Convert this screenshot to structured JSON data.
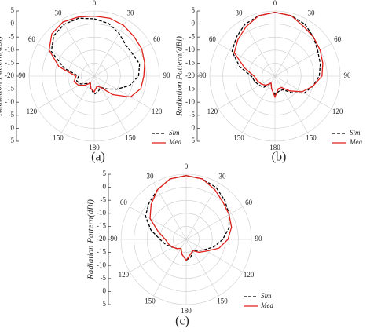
{
  "chart_data": [
    {
      "type": "polar",
      "ylabel": "Radiation Pattern(dBi)",
      "panel_label": "(a)",
      "x": [
        0,
        15,
        30,
        45,
        60,
        75,
        90,
        105,
        120,
        135,
        150,
        165,
        180,
        195,
        210,
        225,
        240,
        255,
        270,
        285,
        300,
        315,
        330,
        345
      ],
      "xlim": [
        0,
        360
      ],
      "xticks": [
        0,
        30,
        60,
        90,
        120,
        150,
        180,
        {
          "value": 210,
          "label": "150"
        },
        {
          "value": 240,
          "label": "120"
        },
        {
          "value": 270,
          "label": "90"
        },
        {
          "value": 300,
          "label": "60"
        },
        {
          "value": 330,
          "label": "30"
        }
      ],
      "ylim": [
        -20,
        5
      ],
      "yticks": [
        5,
        0,
        -5,
        -10,
        -15,
        -20
      ],
      "grid": true,
      "legend": "lower right",
      "series": [
        {
          "name": "Sim",
          "color": "#000000",
          "dashed": true,
          "values": [
            2,
            1,
            -1,
            -3,
            -3,
            -2,
            -3,
            -6,
            -10,
            -13,
            -15,
            -14,
            -13,
            -15,
            -17,
            -16,
            -14,
            -13,
            -14,
            -8,
            -1,
            2,
            3,
            3
          ]
        },
        {
          "name": "Mea",
          "color": "#e0201b",
          "dashed": false,
          "values": [
            3,
            3,
            2.5,
            1.5,
            1,
            0,
            -1,
            -1.5,
            -4,
            -10,
            -15,
            -16,
            -14,
            -15,
            -17,
            -15,
            -13,
            -12,
            -13,
            -6,
            0,
            3,
            4,
            3.5
          ]
        }
      ]
    },
    {
      "type": "polar",
      "ylabel": "Radiation Pattern(dBi)",
      "panel_label": "(b)",
      "x": [
        0,
        15,
        30,
        45,
        60,
        75,
        90,
        105,
        120,
        135,
        150,
        165,
        180,
        195,
        210,
        225,
        240,
        255,
        270,
        285,
        300,
        315,
        330,
        345
      ],
      "xlim": [
        0,
        360
      ],
      "xticks": [
        0,
        30,
        60,
        90,
        120,
        150,
        180,
        {
          "value": 210,
          "label": "150"
        },
        {
          "value": 240,
          "label": "120"
        },
        {
          "value": 270,
          "label": "90"
        },
        {
          "value": 300,
          "label": "60"
        },
        {
          "value": 330,
          "label": "30"
        }
      ],
      "ylim": [
        -20,
        5
      ],
      "yticks": [
        5,
        0,
        -5,
        -10,
        -15,
        -20
      ],
      "grid": true,
      "legend": "lower right",
      "series": [
        {
          "name": "Sim",
          "color": "#000000",
          "dashed": true,
          "values": [
            4.5,
            4,
            3,
            1,
            -1,
            -2,
            -3,
            -5,
            -7,
            -11,
            -14,
            -14,
            -13,
            -15,
            -17,
            -14,
            -13,
            -12,
            -11,
            -6,
            -1,
            1,
            3,
            4
          ]
        },
        {
          "name": "Mea",
          "color": "#e0201b",
          "dashed": false,
          "values": [
            4.5,
            4,
            2,
            1,
            0,
            -1,
            -2,
            -5,
            -8,
            -12,
            -15,
            -15,
            -12,
            -15,
            -17,
            -15,
            -14,
            -13,
            -12,
            -8,
            -2,
            0,
            2,
            4
          ]
        }
      ]
    },
    {
      "type": "polar",
      "ylabel": "Radiation Pattern(dBi)",
      "panel_label": "(c)",
      "x": [
        0,
        15,
        30,
        45,
        60,
        75,
        90,
        105,
        120,
        135,
        150,
        165,
        180,
        195,
        210,
        225,
        240,
        255,
        270,
        285,
        300,
        315,
        330,
        345
      ],
      "xlim": [
        0,
        360
      ],
      "xticks": [
        0,
        30,
        60,
        90,
        120,
        150,
        180,
        {
          "value": 210,
          "label": "150"
        },
        {
          "value": 240,
          "label": "120"
        },
        {
          "value": 270,
          "label": "90"
        },
        {
          "value": 300,
          "label": "60"
        },
        {
          "value": 330,
          "label": "30"
        }
      ],
      "ylim": [
        -20,
        5
      ],
      "yticks": [
        5,
        0,
        -5,
        -10,
        -15,
        -20
      ],
      "grid": true,
      "legend": "lower right",
      "series": [
        {
          "name": "Sim",
          "color": "#000000",
          "dashed": true,
          "values": [
            4.5,
            4,
            3,
            1,
            -1,
            -3,
            -6,
            -9,
            -12,
            -14,
            -15,
            -13,
            -12,
            -14,
            -16,
            -15,
            -14,
            -12,
            -10,
            -6,
            -2,
            0,
            2,
            4
          ]
        },
        {
          "name": "Mea",
          "color": "#e0201b",
          "dashed": false,
          "values": [
            4.5,
            4,
            2,
            0,
            -1,
            -2,
            -4,
            -7,
            -11,
            -13,
            -15,
            -14,
            -12,
            -14,
            -16,
            -15,
            -14,
            -13,
            -12,
            -9,
            -4,
            -1,
            2,
            4
          ]
        }
      ]
    }
  ]
}
